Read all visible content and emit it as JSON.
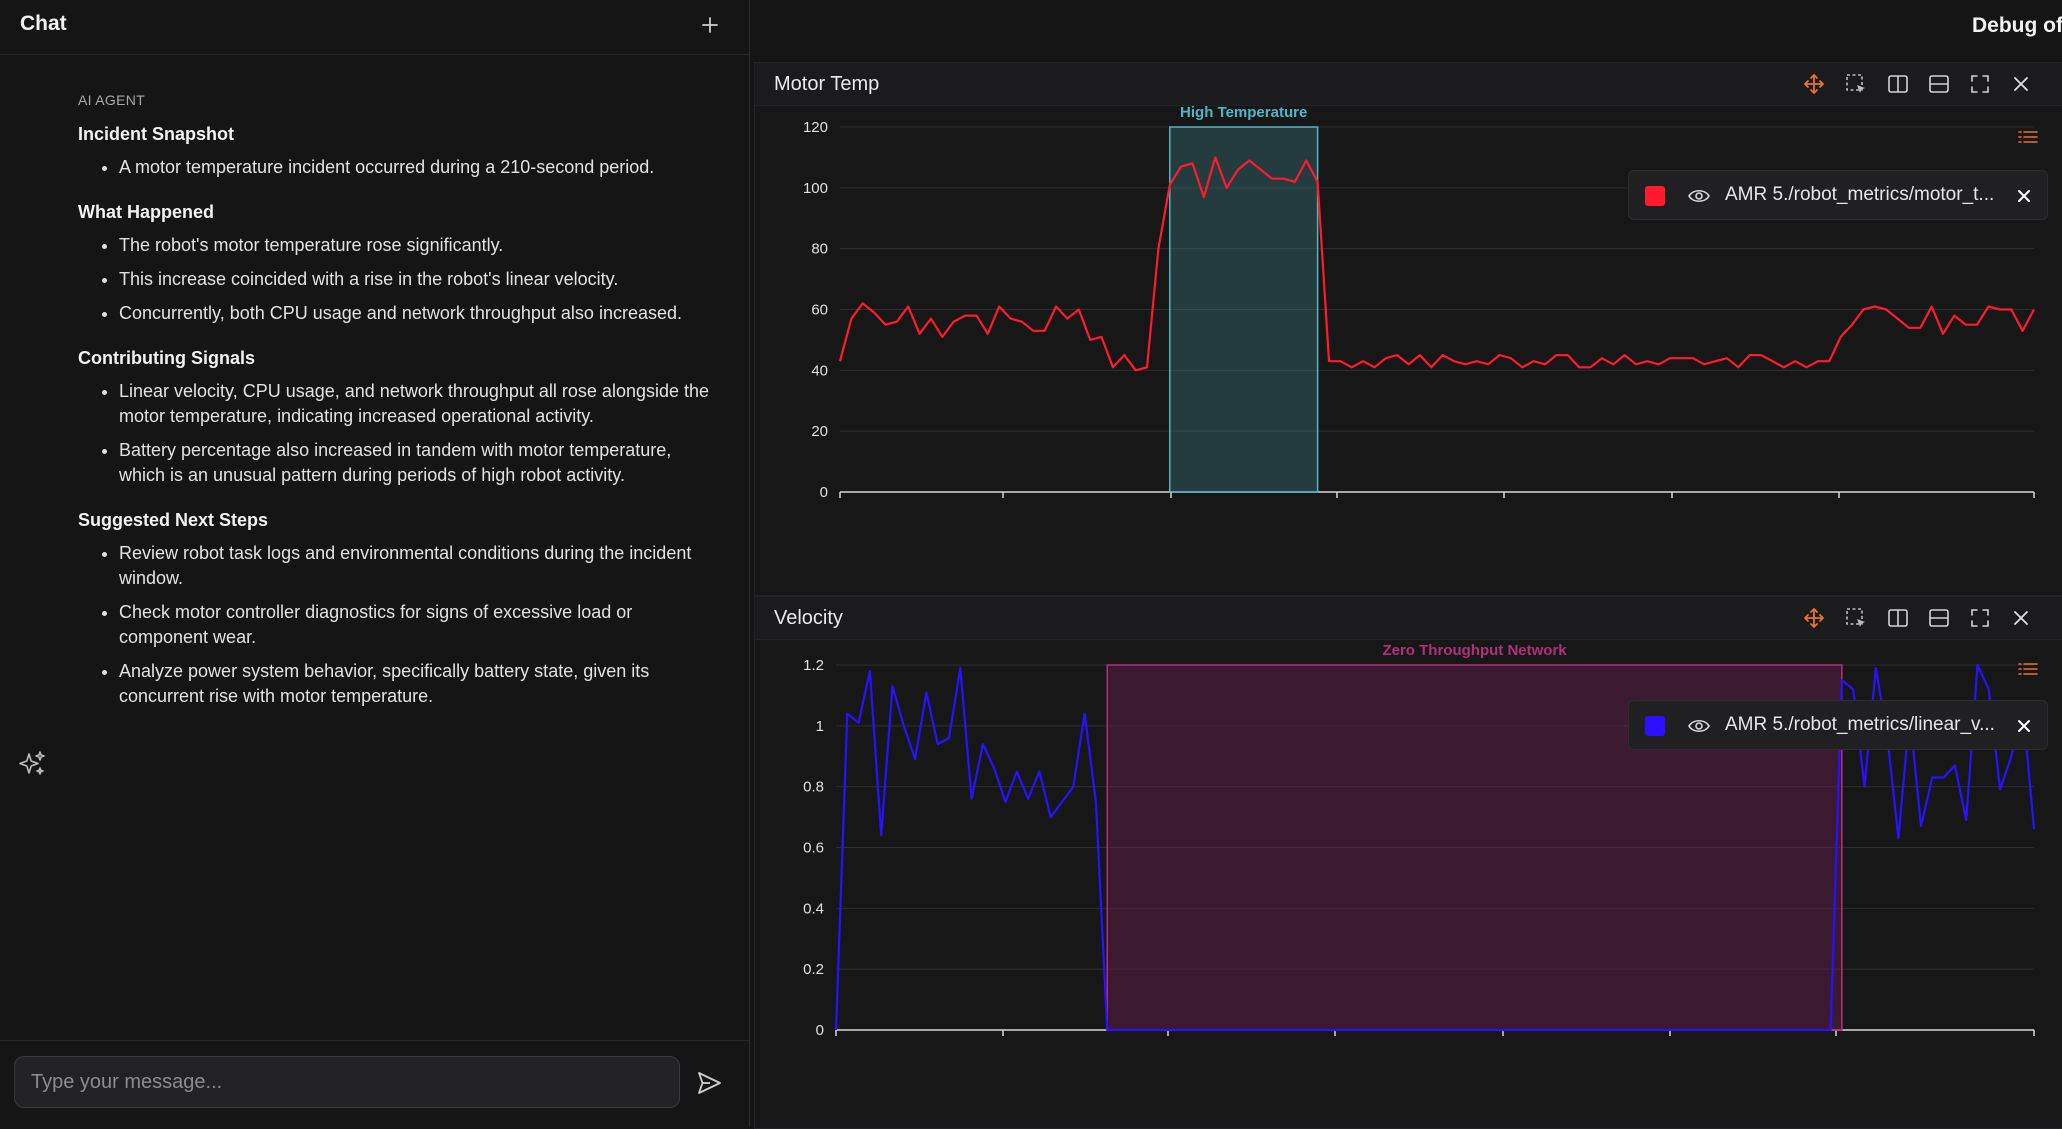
{
  "chat": {
    "title": "Chat",
    "new_chat_icon": "plus-icon",
    "agent_label": "AI AGENT",
    "sections": [
      {
        "title": "Incident Snapshot",
        "bullets": [
          "A motor temperature incident occurred during a 210-second period."
        ]
      },
      {
        "title": "What Happened",
        "bullets": [
          "The robot's motor temperature rose significantly.",
          "This increase coincided with a rise in the robot's linear velocity.",
          "Concurrently, both CPU usage and network throughput also increased."
        ]
      },
      {
        "title": "Contributing Signals",
        "bullets": [
          "Linear velocity, CPU usage, and network throughput all rose alongside the motor temperature, indicating increased operational activity.",
          "Battery percentage also increased in tandem with motor temperature, which is an unusual pattern during periods of high robot activity."
        ]
      },
      {
        "title": "Suggested Next Steps",
        "bullets": [
          "Review robot task logs and environmental conditions during the incident window.",
          "Check motor controller diagnostics for signs of excessive load or component wear.",
          "Analyze power system behavior, specifically battery state, given its concurrent rise with motor temperature."
        ]
      }
    ],
    "input_placeholder": "Type your message...",
    "input_value": "",
    "send_icon": "send-icon",
    "assistant_icon": "sparkles-icon"
  },
  "debug": {
    "title": "Debug of",
    "toolbar_icons": [
      "move-icon",
      "box-select-icon",
      "split-vertical-icon",
      "split-horizontal-icon",
      "fullscreen-icon",
      "close-icon"
    ]
  },
  "colors": {
    "accent": "#e8742a",
    "temp_series": "#ff1a2e",
    "velocity_series": "#2a10ff",
    "temp_highlight": "#4fb6c8",
    "network_highlight": "#b0307a"
  },
  "chart_data": [
    {
      "type": "line",
      "title": "Motor Temp",
      "ylim": [
        0,
        120
      ],
      "yticks": [
        "0",
        "20",
        "40",
        "60",
        "80",
        "100",
        "120"
      ],
      "x_ticks_count": 7,
      "grid": true,
      "legend": "top-right",
      "series": [
        {
          "name": "AMR 5./robot_metrics/motor_temperature",
          "display_name": "AMR 5./robot_metrics/motor_t...",
          "color": "#ff1a2e",
          "values": [
            43,
            57,
            62,
            59,
            55,
            56,
            61,
            52,
            57,
            51,
            56,
            58,
            58,
            52,
            61,
            57,
            56,
            53,
            53,
            61,
            57,
            60,
            50,
            51,
            41,
            45,
            40,
            41,
            80,
            101,
            107,
            108,
            97,
            110,
            100,
            106,
            109,
            106,
            103,
            103,
            102,
            109,
            102,
            43,
            43,
            41,
            43,
            41,
            44,
            45,
            42,
            45,
            41,
            45,
            43,
            42,
            43,
            42,
            45,
            44,
            41,
            43,
            42,
            45,
            45,
            41,
            41,
            44,
            42,
            45,
            42,
            43,
            42,
            44,
            44,
            44,
            42,
            43,
            44,
            41,
            45,
            45,
            43,
            41,
            43,
            41,
            43,
            43,
            51,
            55,
            60,
            61,
            60,
            57,
            54,
            54,
            61,
            52,
            58,
            55,
            55,
            61,
            60,
            60,
            53,
            60
          ]
        }
      ],
      "annotations": [
        {
          "label": "High Temperature",
          "x_start_index": 29,
          "x_end_index": 42
        }
      ]
    },
    {
      "type": "line",
      "title": "Velocity",
      "ylim": [
        0,
        1.2
      ],
      "yticks": [
        "0",
        "0.2",
        "0.4",
        "0.6",
        "0.8",
        "1",
        "1.2"
      ],
      "x_ticks_count": 7,
      "grid": true,
      "legend": "top-right",
      "series": [
        {
          "name": "AMR 5./robot_metrics/linear_velocity",
          "display_name": "AMR 5./robot_metrics/linear_v...",
          "color": "#2a10ff",
          "values": [
            0,
            1.04,
            1.01,
            1.18,
            0.64,
            1.13,
            1.0,
            0.89,
            1.11,
            0.94,
            0.96,
            1.19,
            0.76,
            0.94,
            0.86,
            0.75,
            0.85,
            0.76,
            0.85,
            0.7,
            0.75,
            0.8,
            1.04,
            0.75,
            0,
            0,
            0,
            0,
            0,
            0,
            0,
            0,
            0,
            0,
            0,
            0,
            0,
            0,
            0,
            0,
            0,
            0,
            0,
            0,
            0,
            0,
            0,
            0,
            0,
            0,
            0,
            0,
            0,
            0,
            0,
            0,
            0,
            0,
            0,
            0,
            0,
            0,
            0,
            0,
            0,
            0,
            0,
            0,
            0,
            0,
            0,
            0,
            0,
            0,
            0,
            0,
            0,
            0,
            0,
            0,
            0,
            0,
            0,
            0,
            0,
            0,
            0,
            0,
            0,
            1.15,
            1.12,
            0.8,
            1.19,
            0.97,
            0.63,
            1.04,
            0.67,
            0.83,
            0.83,
            0.87,
            0.69,
            1.2,
            1.12,
            0.79,
            0.9,
            1.07,
            0.66
          ]
        }
      ],
      "annotations": [
        {
          "label": "Zero Throughput Network",
          "x_start_index": 24,
          "x_end_index": 89
        }
      ]
    }
  ]
}
